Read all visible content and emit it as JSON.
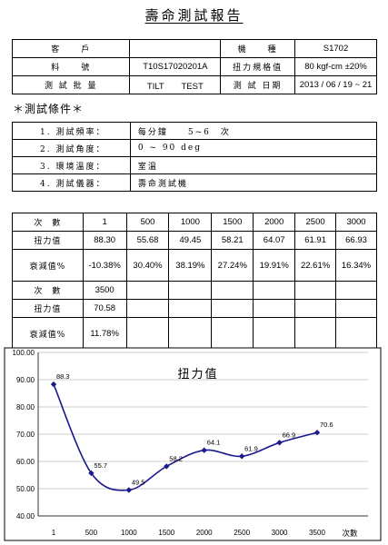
{
  "report_title": "壽命測試報告",
  "info_table": {
    "rows": [
      {
        "label1": "客　　戶",
        "value1": "",
        "label2": "機　　種",
        "value2": "S1702"
      },
      {
        "label1": "料　　號",
        "value1": "T10S17020201A",
        "label2": "扭力規格值",
        "value2": "80 kgf-cm ±20%"
      },
      {
        "label1": "測 試 批 量",
        "value1": "TILT　　TEST",
        "label2": "測 試 日期",
        "value2": "2013 / 06 / 19 ~ 21"
      }
    ]
  },
  "conditions_title": "＊測試條件＊",
  "conditions": [
    {
      "num": "1.",
      "label": "測試頻率：",
      "value": "每分鐘　　5~6　次"
    },
    {
      "num": "2.",
      "label": "測試角度：",
      "value": "0 ~ 90 deg"
    },
    {
      "num": "3.",
      "label": "環境溫度：",
      "value": "室溫"
    },
    {
      "num": "4.",
      "label": "測試儀器：",
      "value": "壽命測試機"
    }
  ],
  "results_table": {
    "block1": {
      "count_label": "次　數",
      "counts": [
        "1",
        "500",
        "1000",
        "1500",
        "2000",
        "2500",
        "3000"
      ],
      "torque_label": "扭力值",
      "torques": [
        "88.30",
        "55.68",
        "49.45",
        "58.21",
        "64.07",
        "61.91",
        "66.93"
      ],
      "decay_label": "衰減值%",
      "decays": [
        "-10.38%",
        "30.40%",
        "38.19%",
        "27.24%",
        "19.91%",
        "22.61%",
        "16.34%"
      ]
    },
    "block2": {
      "count_label": "次　數",
      "counts": [
        "3500"
      ],
      "torque_label": "扭力值",
      "torques": [
        "70.58"
      ],
      "decay_label": "衰減值%",
      "decays": [
        "11.78%"
      ]
    }
  },
  "chart_data": {
    "type": "line",
    "title": "扭力值",
    "xlabel": "次數",
    "ylabel": "",
    "x": [
      1,
      500,
      1000,
      1500,
      2000,
      2500,
      3000,
      3500
    ],
    "x_tick_labels": [
      "1",
      "500",
      "1000",
      "1500",
      "2000",
      "2500",
      "3000",
      "3500"
    ],
    "series": [
      {
        "values": [
          88.3,
          55.7,
          49.5,
          58.2,
          64.1,
          61.9,
          66.9,
          70.6
        ],
        "data_labels": [
          "88.3",
          "55.7",
          "49.5",
          "58.2",
          "64.1",
          "61.9",
          "66.9",
          "70.6"
        ],
        "color": "#1a1a8c"
      }
    ],
    "y_tick_labels": [
      "40.00",
      "50.00",
      "60.00",
      "70.00",
      "80.00",
      "90.00",
      "100.00"
    ],
    "ylim": [
      40,
      100
    ],
    "grid": "horizontal",
    "line_style": "smooth",
    "marker": "diamond"
  }
}
